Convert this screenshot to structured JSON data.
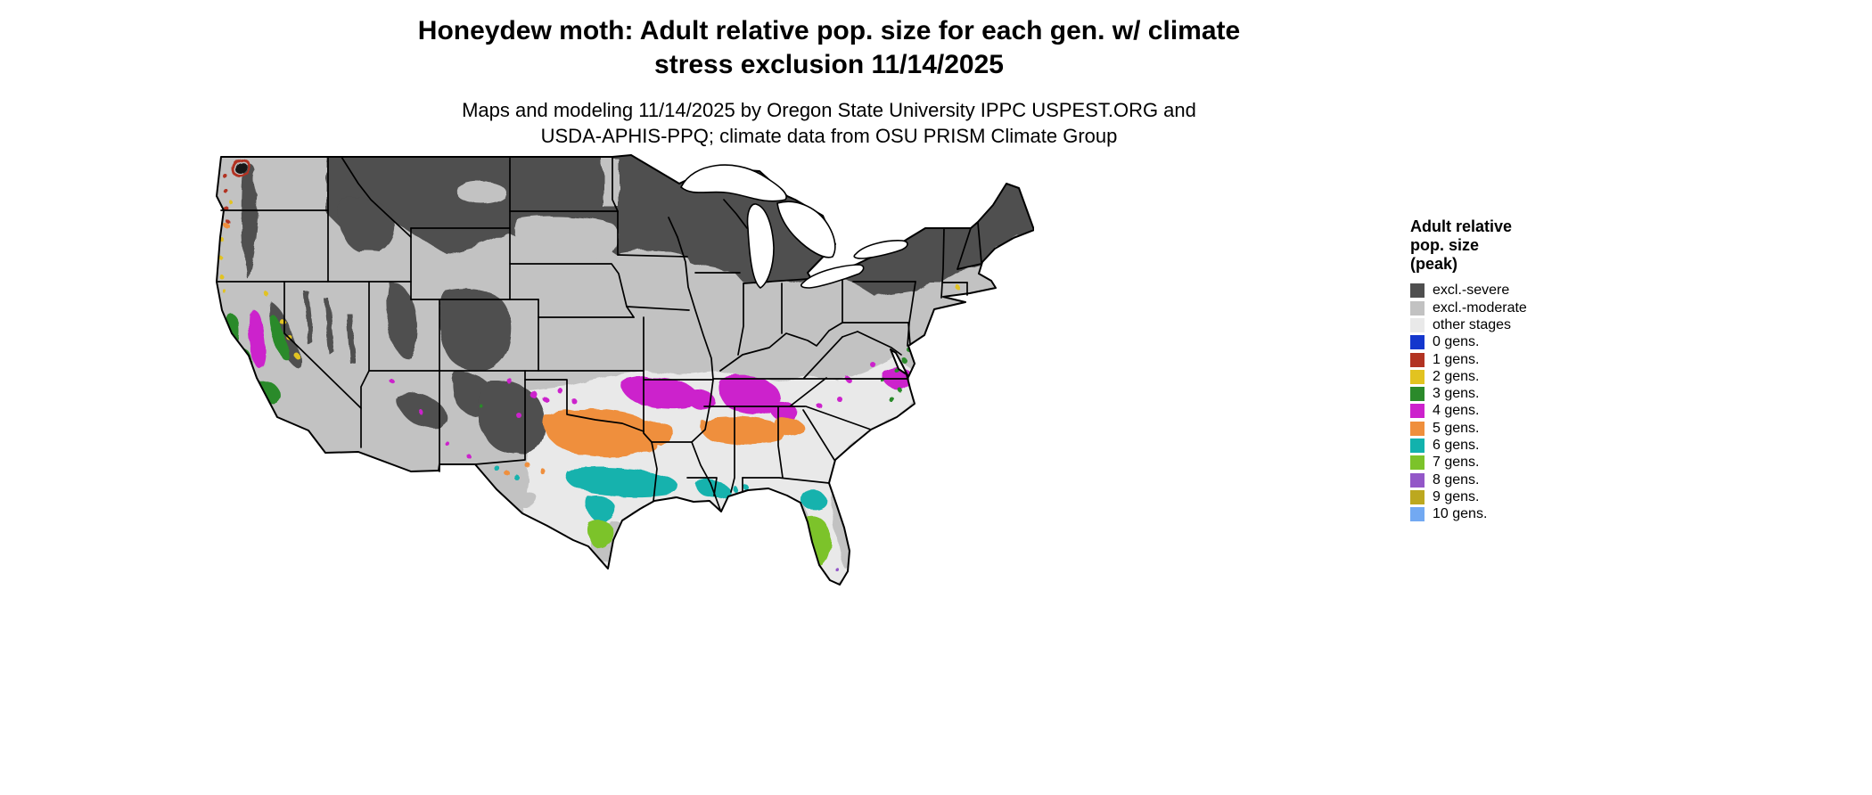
{
  "title": {
    "line1": "Honeydew moth: Adult relative pop. size for each gen. w/ climate",
    "line2": "stress exclusion 11/14/2025"
  },
  "subtitle": {
    "line1": "Maps and modeling 11/14/2025 by Oregon State University IPPC USPEST.ORG and",
    "line2": "USDA-APHIS-PPQ; climate data from OSU PRISM Climate Group"
  },
  "legend": {
    "title_lines": [
      "Adult relative",
      "pop. size",
      "(peak)"
    ],
    "items": [
      {
        "label": "excl.-severe",
        "color": "#4f4f4f"
      },
      {
        "label": "excl.-moderate",
        "color": "#c2c2c2"
      },
      {
        "label": "other stages",
        "color": "#e9e9e9"
      },
      {
        "label": "0 gens.",
        "color": "#1437cd"
      },
      {
        "label": "1 gens.",
        "color": "#b23322"
      },
      {
        "label": "2 gens.",
        "color": "#e2c320"
      },
      {
        "label": "3 gens.",
        "color": "#2b8a2b"
      },
      {
        "label": "4 gens.",
        "color": "#cc22cc"
      },
      {
        "label": "5 gens.",
        "color": "#ef8f3c"
      },
      {
        "label": "6 gens.",
        "color": "#12b2ad"
      },
      {
        "label": "7 gens.",
        "color": "#7cc32a"
      },
      {
        "label": "8 gens.",
        "color": "#9357c8"
      },
      {
        "label": "9 gens.",
        "color": "#bca81f"
      },
      {
        "label": "10 gens.",
        "color": "#72a9f2"
      }
    ]
  }
}
